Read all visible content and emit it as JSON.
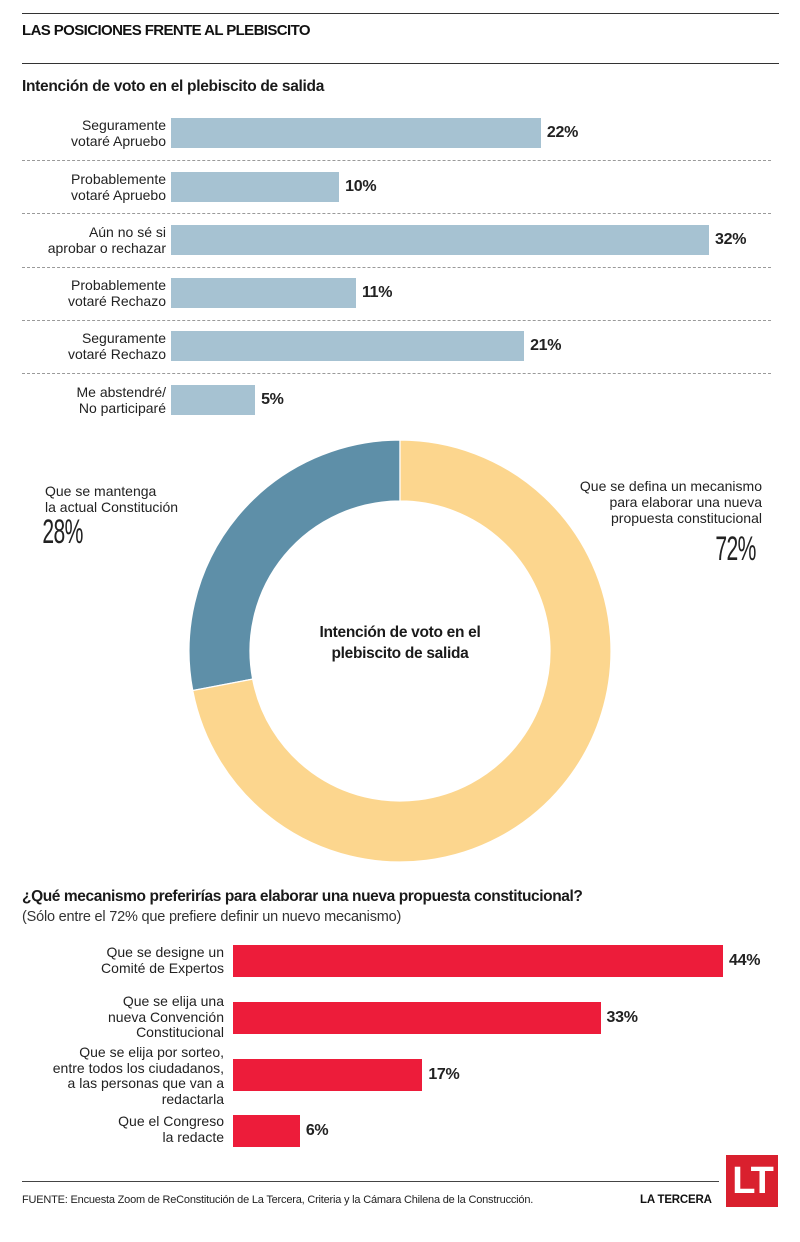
{
  "header": {
    "title": "LAS POSICIONES FRENTE AL PLEBISCITO",
    "subtitle": "Intención de voto en el plebiscito de salida"
  },
  "colors": {
    "bar_blue": "#a6c2d2",
    "donut_blue": "#5e8fa8",
    "donut_yellow": "#fcd68e",
    "bar_red": "#ed1c3a",
    "logo_red": "#d9202e"
  },
  "chart_data": [
    {
      "type": "bar",
      "orientation": "horizontal",
      "title": "Intención de voto en el plebiscito de salida",
      "categories": [
        [
          "Seguramente",
          "votaré Apruebo"
        ],
        [
          "Probablemente",
          "votaré Apruebo"
        ],
        [
          "Aún no sé si",
          "aprobar o rechazar"
        ],
        [
          "Probablemente",
          "votaré Rechazo"
        ],
        [
          "Seguramente",
          "votaré Rechazo"
        ],
        [
          "Me abstendré/",
          "No participaré"
        ]
      ],
      "values": [
        22,
        10,
        32,
        11,
        21,
        5
      ],
      "labels": [
        "22%",
        "10%",
        "32%",
        "11%",
        "21%",
        "5%"
      ],
      "xlim": [
        0,
        32
      ],
      "unit": "%"
    },
    {
      "type": "pie",
      "donut": true,
      "center_title": [
        "Intención de voto en el",
        "plebiscito de salida"
      ],
      "slices": [
        {
          "label": [
            "Que se mantenga",
            "la actual Constitución"
          ],
          "value": 28,
          "pct_label": "28%",
          "color": "#5e8fa8"
        },
        {
          "label": [
            "Que se defina un mecanismo",
            "para elaborar una nueva",
            "propuesta constitucional"
          ],
          "value": 72,
          "pct_label": "72%",
          "color": "#fcd68e"
        }
      ]
    },
    {
      "type": "bar",
      "orientation": "horizontal",
      "title": "¿Qué mecanismo preferirías para elaborar una nueva propuesta constitucional?",
      "subtitle": "(Sólo entre el 72% que prefiere definir un nuevo mecanismo)",
      "categories": [
        [
          "Que se designe un",
          "Comité de Expertos"
        ],
        [
          "Que se elija una",
          "nueva Convención",
          "Constitucional"
        ],
        [
          "Que se elija por sorteo,",
          "entre todos los ciudadanos,",
          "a las personas que van a",
          "redactarla"
        ],
        [
          "Que el Congreso",
          "la redacte"
        ]
      ],
      "values": [
        44,
        33,
        17,
        6
      ],
      "labels": [
        "44%",
        "33%",
        "17%",
        "6%"
      ],
      "xlim": [
        0,
        44
      ],
      "unit": "%"
    }
  ],
  "footer": {
    "source": "FUENTE: Encuesta Zoom de ReConstitución de La Tercera, Criteria y la Cámara Chilena de la Construcción.",
    "brand": "LA TERCERA",
    "logo_text": "LT"
  }
}
